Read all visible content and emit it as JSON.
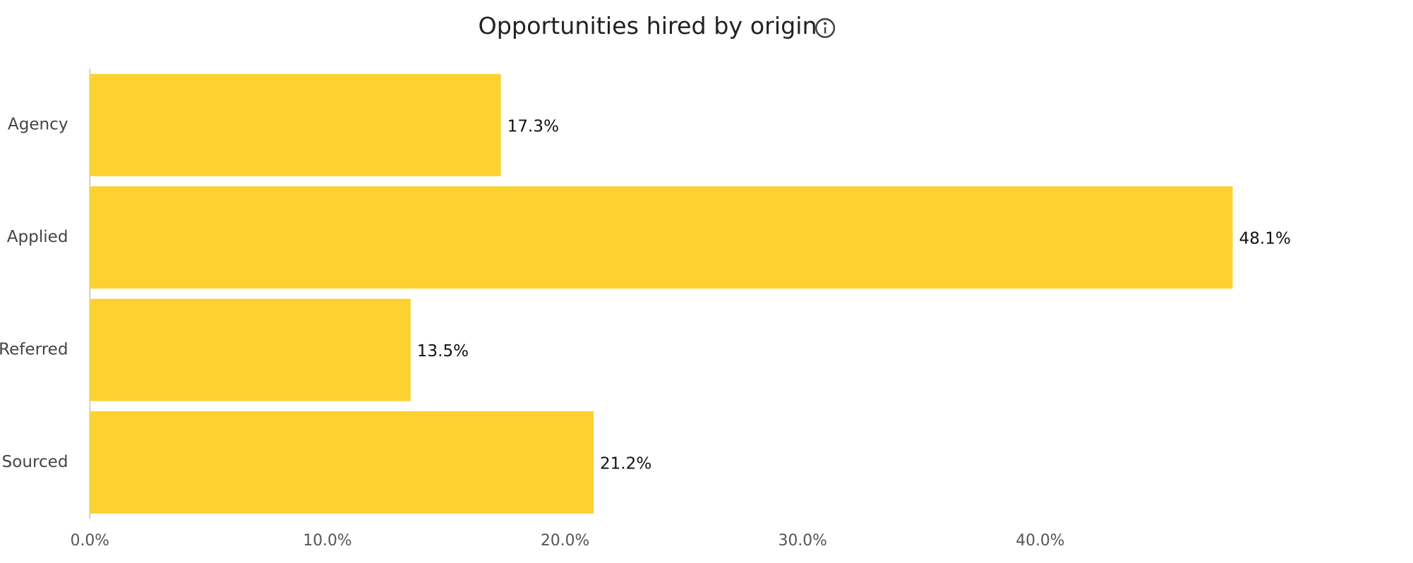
{
  "chart_data": {
    "type": "bar",
    "orientation": "horizontal",
    "title": "Opportunities hired by origin",
    "categories": [
      "Agency",
      "Applied",
      "Referred",
      "Sourced"
    ],
    "values": [
      17.3,
      48.1,
      13.5,
      21.2
    ],
    "value_labels": [
      "17.3%",
      "48.1%",
      "13.5%",
      "21.2%"
    ],
    "color": "#fdd130",
    "xlim": [
      0,
      55
    ],
    "xticks": [
      {
        "value": 0,
        "label": "0.0%"
      },
      {
        "value": 10,
        "label": "10.0%"
      },
      {
        "value": 20,
        "label": "20.0%"
      },
      {
        "value": 30,
        "label": "30.0%"
      },
      {
        "value": 40,
        "label": "40.0%"
      }
    ],
    "grid": false
  }
}
